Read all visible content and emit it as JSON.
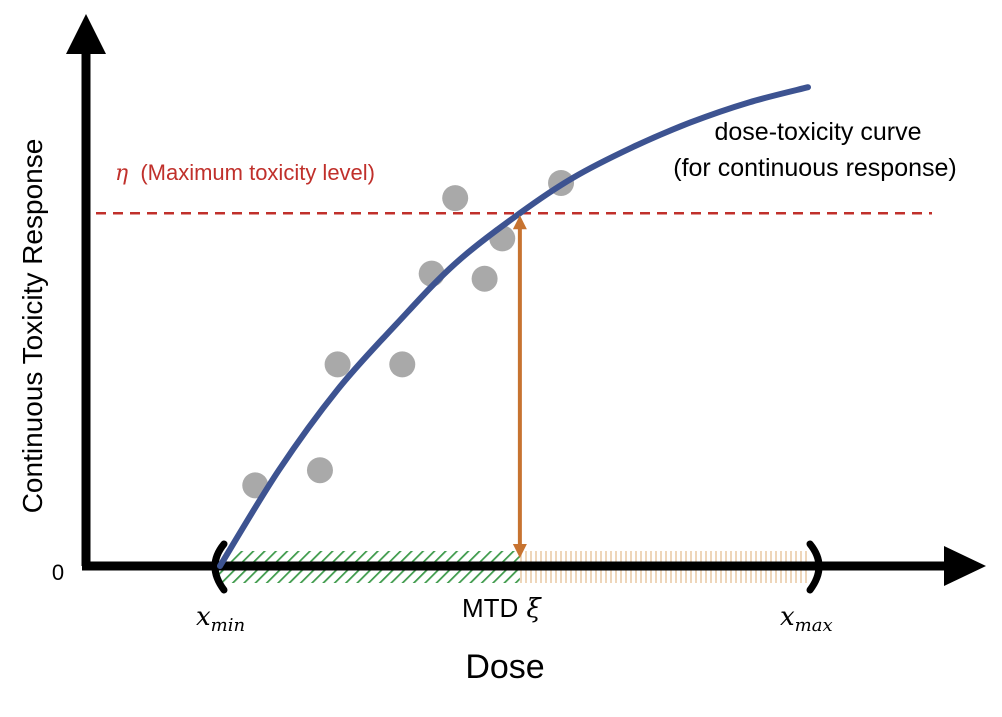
{
  "chart_data": {
    "type": "scatter",
    "y_label": "Continuous Toxicity Response",
    "x_label": "Dose",
    "y_origin_label": "0",
    "x_min_label": {
      "base": "x",
      "sub": "min"
    },
    "x_max_label": {
      "base": "x",
      "sub": "max"
    },
    "mtd_label": {
      "text": "MTD",
      "symbol": "ξ"
    },
    "threshold": {
      "symbol": "η",
      "label": "(Maximum toxicity level)",
      "value": 0.7
    },
    "curve_label_line1": "dose-toxicity curve",
    "curve_label_line2": "(for continuous response)",
    "x_range": [
      0,
      1
    ],
    "y_range": [
      0,
      1
    ],
    "mtd_x": 0.51,
    "curve": [
      [
        0.0,
        0.0
      ],
      [
        0.1,
        0.19
      ],
      [
        0.2,
        0.35
      ],
      [
        0.3,
        0.48
      ],
      [
        0.4,
        0.6
      ],
      [
        0.51,
        0.7
      ],
      [
        0.6,
        0.77
      ],
      [
        0.7,
        0.83
      ],
      [
        0.8,
        0.88
      ],
      [
        0.9,
        0.92
      ],
      [
        1.0,
        0.95
      ]
    ],
    "points": [
      [
        0.06,
        0.16
      ],
      [
        0.17,
        0.19
      ],
      [
        0.2,
        0.4
      ],
      [
        0.31,
        0.4
      ],
      [
        0.36,
        0.58
      ],
      [
        0.4,
        0.73
      ],
      [
        0.45,
        0.57
      ],
      [
        0.48,
        0.65
      ],
      [
        0.58,
        0.76
      ]
    ],
    "colors": {
      "axis": "#000000",
      "curve": "#3d5391",
      "threshold": "#c0302b",
      "mtd_arrow": "#c77330",
      "points": "#a9a9a9",
      "feasible_hatch": "#3d9a4a",
      "infeasible_hatch": "#e8c9a4"
    }
  }
}
